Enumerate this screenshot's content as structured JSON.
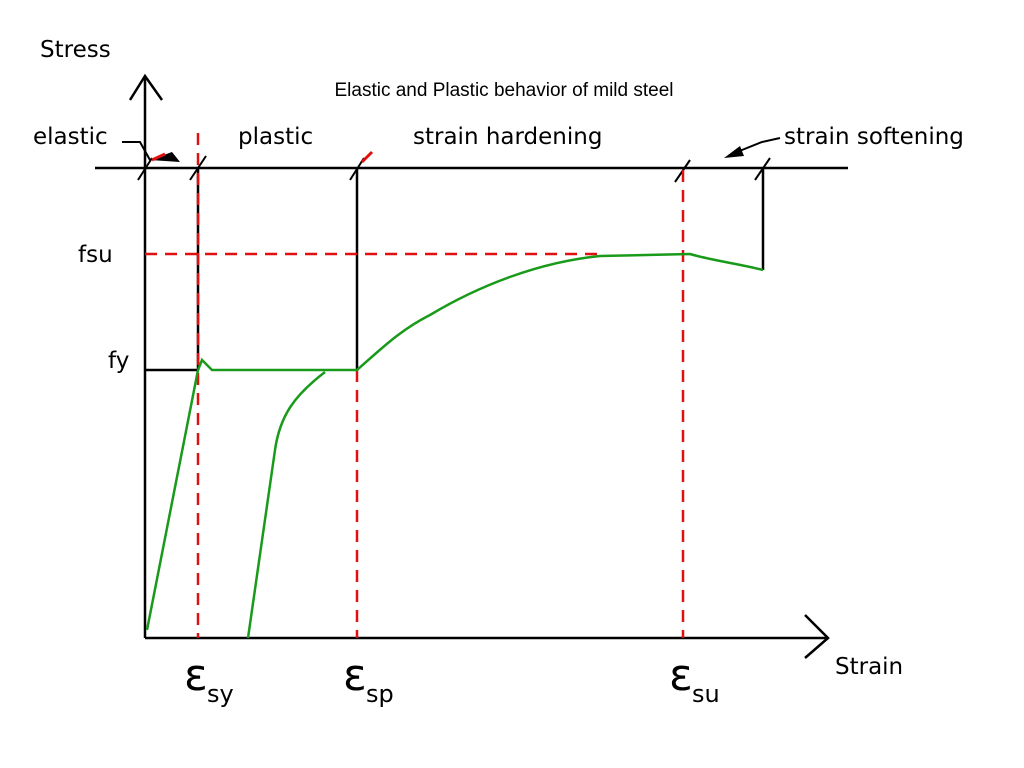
{
  "title": "Elastic and Plastic behavior of mild steel",
  "axes": {
    "y_label": "Stress",
    "x_label": "Strain"
  },
  "regions": [
    "elastic",
    "plastic",
    "strain hardening",
    "strain softening"
  ],
  "stress_levels": [
    "fsu",
    "fy"
  ],
  "strain_points": [
    {
      "symbol": "ε",
      "subscript": "sy"
    },
    {
      "symbol": "ε",
      "subscript": "sp"
    },
    {
      "symbol": "ε",
      "subscript": "su"
    }
  ]
}
